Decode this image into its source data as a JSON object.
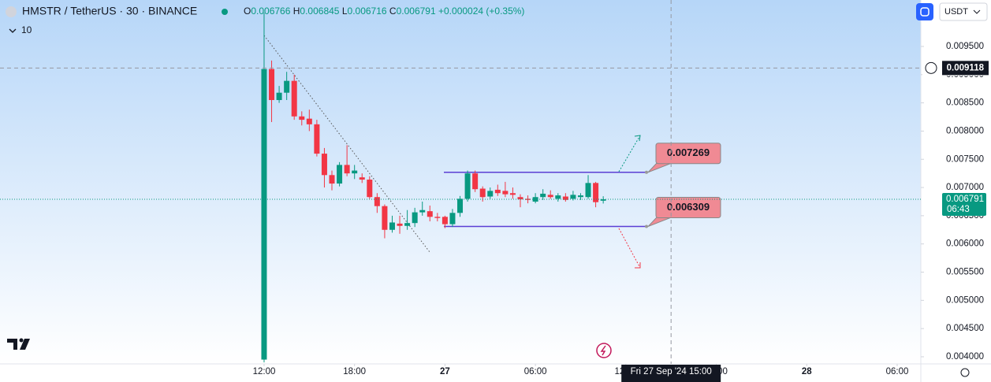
{
  "chart_data": {
    "type": "candlestick",
    "symbol": "HMSTR / TetherUS · 30 · BINANCE",
    "indicator_count": "10",
    "currency_button": "USDT",
    "ohlc_header": {
      "open_label": "O",
      "open": 0.006766,
      "high_label": "H",
      "high": 0.006845,
      "low_label": "L",
      "low": 0.006716,
      "close_label": "C",
      "close": 0.006791,
      "change": "+0.000024",
      "change_pct": "(+0.35%)"
    },
    "x": [
      12,
      12.5,
      13,
      13.5,
      14,
      14.5,
      15,
      15.5,
      16,
      16.5,
      17,
      17.5,
      18,
      18.5,
      19,
      19.5,
      20,
      20.5,
      21,
      21.5,
      22,
      22.5,
      23,
      23.5,
      24,
      24.5,
      25,
      25.5,
      26,
      26.5,
      27,
      27.5,
      28,
      28.5,
      29,
      29.5,
      30,
      30.5,
      31,
      31.5,
      32,
      32.5,
      33,
      33.5,
      34,
      34.5
    ],
    "open": [
      0.00395,
      0.0091,
      0.00855,
      0.00868,
      0.00889,
      0.00826,
      0.00822,
      0.00812,
      0.0076,
      0.00722,
      0.00707,
      0.0074,
      0.00725,
      0.00718,
      0.00714,
      0.00683,
      0.00667,
      0.00625,
      0.00636,
      0.00632,
      0.00637,
      0.00656,
      0.00658,
      0.00648,
      0.00648,
      0.00635,
      0.00655,
      0.0068,
      0.00725,
      0.00698,
      0.00684,
      0.00696,
      0.00694,
      0.0069,
      0.00683,
      0.0068,
      0.00675,
      0.00683,
      0.00687,
      0.0068,
      0.00684,
      0.0068,
      0.00683,
      0.00683,
      0.00708,
      0.006766
    ],
    "high": [
      0.0101,
      0.00925,
      0.0088,
      0.00905,
      0.009,
      0.00835,
      0.00838,
      0.0082,
      0.0077,
      0.0073,
      0.00745,
      0.00775,
      0.0074,
      0.00725,
      0.0072,
      0.0069,
      0.0067,
      0.0065,
      0.0065,
      0.0066,
      0.00664,
      0.00675,
      0.00668,
      0.00655,
      0.0065,
      0.00662,
      0.00685,
      0.0073,
      0.0073,
      0.00702,
      0.007,
      0.00705,
      0.0071,
      0.007,
      0.00688,
      0.00686,
      0.0069,
      0.00697,
      0.00695,
      0.0069,
      0.0069,
      0.00694,
      0.0069,
      0.00722,
      0.0071,
      0.006845
    ],
    "low": [
      0.0039,
      0.00816,
      0.0085,
      0.00855,
      0.0082,
      0.0081,
      0.008,
      0.00755,
      0.007,
      0.00695,
      0.00702,
      0.0072,
      0.00715,
      0.00708,
      0.0068,
      0.00655,
      0.0061,
      0.0062,
      0.00618,
      0.00625,
      0.0063,
      0.0065,
      0.0064,
      0.0064,
      0.00628,
      0.0063,
      0.00648,
      0.00675,
      0.00692,
      0.00675,
      0.0068,
      0.00685,
      0.00683,
      0.0068,
      0.00665,
      0.00672,
      0.00672,
      0.00678,
      0.0068,
      0.00675,
      0.00675,
      0.00677,
      0.00678,
      0.0068,
      0.00665,
      0.006716
    ],
    "close": [
      0.0091,
      0.00855,
      0.00868,
      0.00889,
      0.00826,
      0.0082,
      0.00812,
      0.0076,
      0.00722,
      0.00707,
      0.0074,
      0.00725,
      0.0073,
      0.00714,
      0.00683,
      0.00667,
      0.00625,
      0.00638,
      0.00632,
      0.00637,
      0.00656,
      0.0066,
      0.00648,
      0.00646,
      0.00635,
      0.00655,
      0.0068,
      0.00725,
      0.00697,
      0.00683,
      0.00694,
      0.0069,
      0.00688,
      0.00687,
      0.00679,
      0.00678,
      0.00683,
      0.00689,
      0.00683,
      0.00686,
      0.00678,
      0.00687,
      0.00686,
      0.00708,
      0.00674,
      0.006791
    ],
    "up_color": "#089981",
    "down_color": "#f23645",
    "xlim": [
      -5.52,
      55.57
    ],
    "ylim": [
      0.003874,
      0.010323
    ],
    "xticks": [
      {
        "value": 12,
        "label": "12:00"
      },
      {
        "value": 18,
        "label": "18:00"
      },
      {
        "value": 24,
        "label": "27"
      },
      {
        "value": 30,
        "label": "06:00"
      },
      {
        "value": 36,
        "label": "12:00"
      },
      {
        "value": 42,
        "label": "18:00"
      },
      {
        "value": 48,
        "label": "28"
      },
      {
        "value": 54,
        "label": "06:00"
      }
    ],
    "yticks": [
      {
        "value": 0.0095,
        "label": "0.009500"
      },
      {
        "value": 0.009,
        "label": "0.009000"
      },
      {
        "value": 0.0085,
        "label": "0.008500"
      },
      {
        "value": 0.008,
        "label": "0.008000"
      },
      {
        "value": 0.0075,
        "label": "0.007500"
      },
      {
        "value": 0.007,
        "label": "0.007000"
      },
      {
        "value": 0.0065,
        "label": "0.006500"
      },
      {
        "value": 0.006,
        "label": "0.006000"
      },
      {
        "value": 0.0055,
        "label": "0.005500"
      },
      {
        "value": 0.005,
        "label": "0.005000"
      },
      {
        "value": 0.0045,
        "label": "0.004500"
      },
      {
        "value": 0.004,
        "label": "0.004000"
      }
    ],
    "levels": [
      0.007269,
      0.006309
    ],
    "last_price": 0.006791,
    "countdown": "06:43",
    "crosshair": {
      "x": {
        "value": 39,
        "label": "Fri 27 Sep '24 15:00"
      },
      "y": 0.009118
    }
  }
}
